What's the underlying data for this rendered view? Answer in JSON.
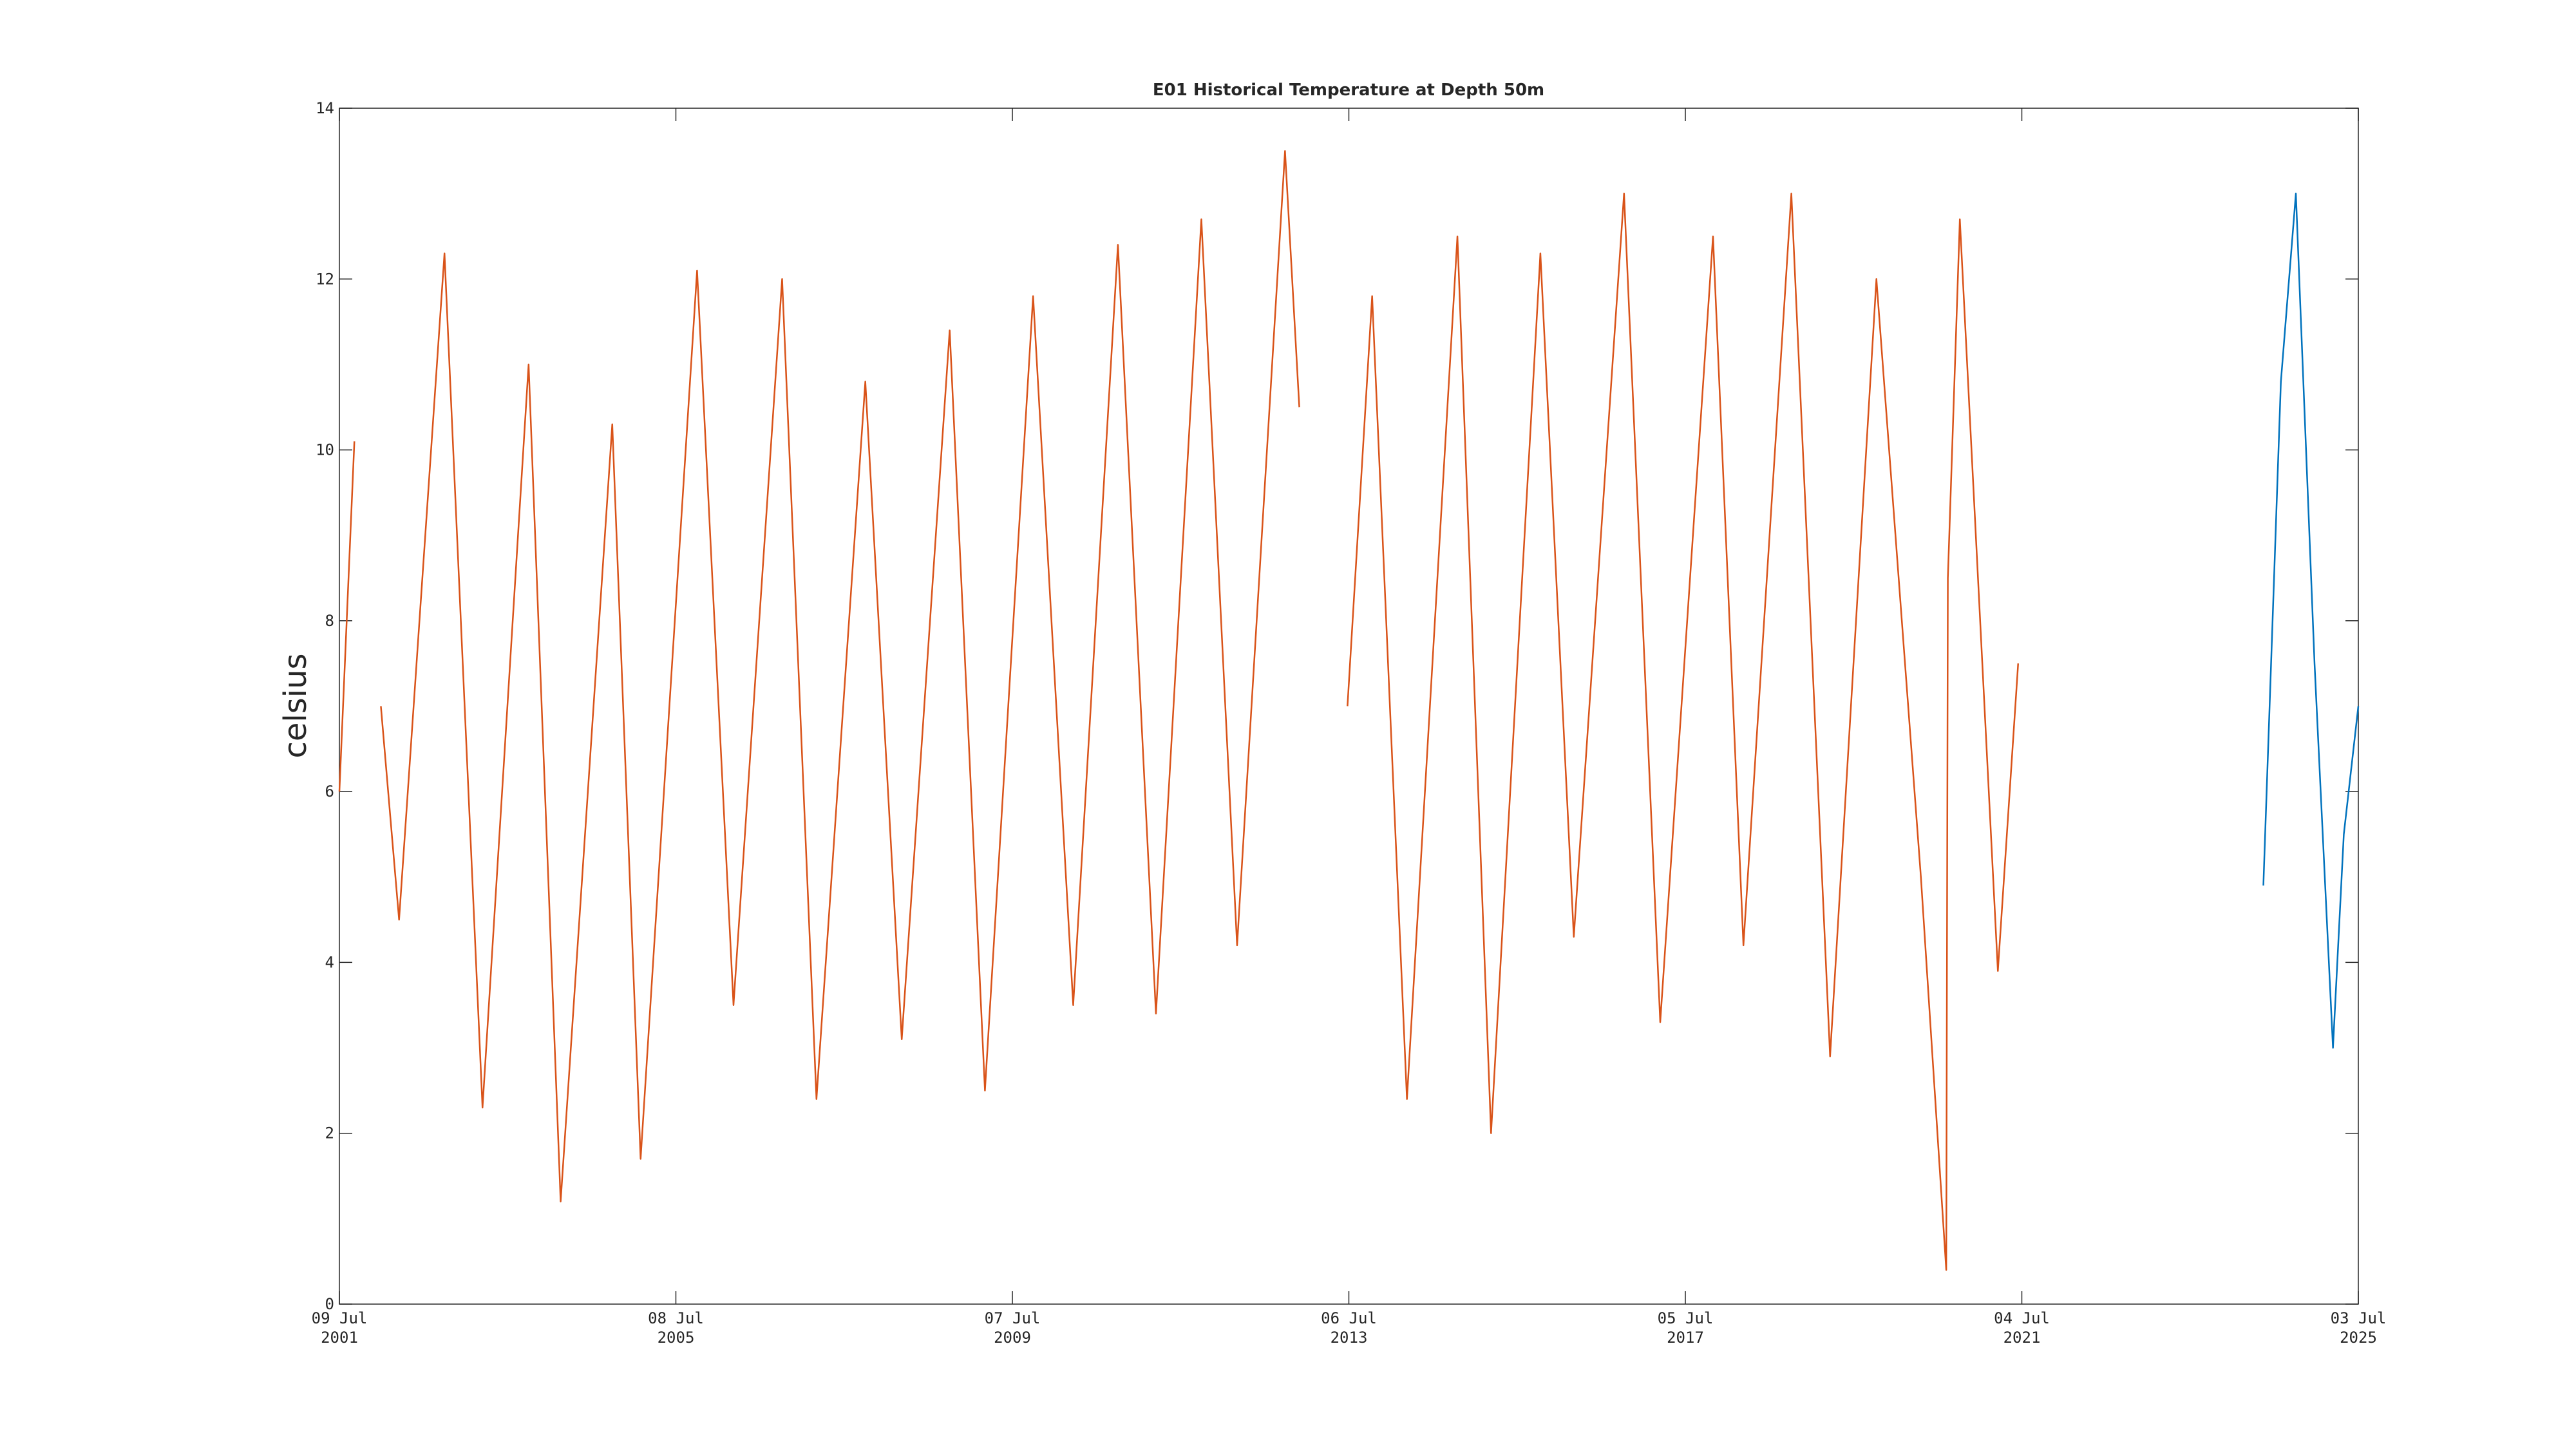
{
  "chart_data": {
    "type": "line",
    "title": "E01 Historical Temperature at Depth 50m",
    "y_label": "celsius",
    "xlim": [
      "2001-07-09",
      "2025-07-03"
    ],
    "xticks": [
      {
        "value": "2001-07-09",
        "label": [
          "09 Jul",
          "2001"
        ]
      },
      {
        "value": "2005-07-08",
        "label": [
          "08 Jul",
          "2005"
        ]
      },
      {
        "value": "2009-07-07",
        "label": [
          "07 Jul",
          "2009"
        ]
      },
      {
        "value": "2013-07-06",
        "label": [
          "06 Jul",
          "2013"
        ]
      },
      {
        "value": "2017-07-05",
        "label": [
          "05 Jul",
          "2017"
        ]
      },
      {
        "value": "2021-07-04",
        "label": [
          "04 Jul",
          "2021"
        ]
      },
      {
        "value": "2025-07-03",
        "label": [
          "03 Jul",
          "2025"
        ]
      }
    ],
    "ylim": [
      0,
      14
    ],
    "yticks": [
      0,
      2,
      4,
      6,
      8,
      10,
      12,
      14
    ],
    "series": [
      {
        "color": "#D95319",
        "x": [
          "2001-07-09",
          "2001-09-12",
          "2001-12-01",
          "2002-01-05",
          "2002-03-25",
          "2002-10-08",
          "2003-03-22",
          "2003-10-08",
          "2004-02-24",
          "2004-10-05",
          "2005-02-05",
          "2005-10-08",
          "2006-03-15",
          "2006-10-12",
          "2007-03-10",
          "2007-10-08",
          "2008-03-14",
          "2008-10-08",
          "2009-03-10",
          "2009-10-05",
          "2010-03-28",
          "2010-10-08",
          "2011-03-22",
          "2011-10-05",
          "2012-03-08",
          "2012-10-02",
          "2012-12-03",
          "2013-03-01",
          "2013-06-30",
          "2013-10-15",
          "2014-03-15",
          "2014-10-20",
          "2015-03-15",
          "2015-10-15",
          "2016-03-08",
          "2016-10-12",
          "2017-03-18",
          "2017-11-02",
          "2018-03-14",
          "2018-10-08",
          "2019-03-25",
          "2019-10-12",
          "2020-04-22",
          "2020-08-10",
          "2020-08-17",
          "2020-10-08",
          "2021-03-22",
          "2021-06-18"
        ],
        "values": [
          6.0,
          10.1,
          null,
          7.0,
          4.5,
          12.3,
          2.3,
          11.0,
          1.2,
          10.3,
          1.7,
          12.1,
          3.5,
          12.0,
          2.4,
          10.8,
          3.1,
          11.4,
          2.5,
          11.8,
          3.5,
          12.4,
          3.4,
          12.7,
          4.2,
          13.5,
          10.5,
          null,
          7.0,
          11.8,
          2.4,
          12.5,
          2.0,
          12.3,
          4.3,
          13.0,
          3.3,
          12.5,
          4.2,
          13.0,
          2.9,
          12.0,
          5.0,
          0.4,
          8.5,
          12.7,
          3.9,
          7.5
        ]
      },
      {
        "color": "#0072BD",
        "x": [
          "2024-05-17",
          "2024-08-01",
          "2024-10-05",
          "2024-12-25",
          "2025-03-15",
          "2025-05-01",
          "2025-07-03"
        ],
        "values": [
          4.9,
          10.8,
          13.0,
          7.5,
          3.0,
          5.5,
          7.0
        ]
      }
    ]
  }
}
